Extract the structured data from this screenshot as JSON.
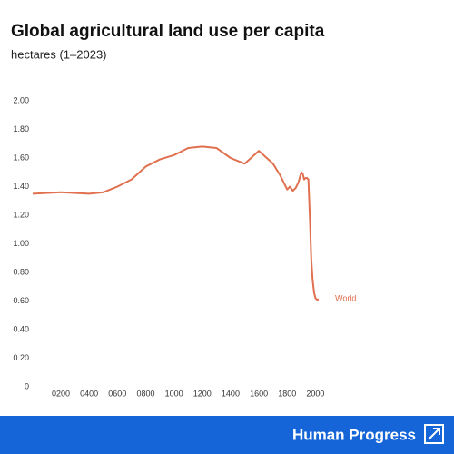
{
  "chart_data": {
    "type": "line",
    "title": "Global agricultural land use per capita",
    "subtitle": "hectares (1–2023)",
    "x": [
      1,
      200,
      400,
      500,
      600,
      700,
      800,
      900,
      1000,
      1100,
      1200,
      1300,
      1400,
      1500,
      1600,
      1700,
      1750,
      1780,
      1800,
      1820,
      1840,
      1860,
      1880,
      1900,
      1910,
      1920,
      1930,
      1940,
      1950,
      1960,
      1970,
      1980,
      1990,
      2000,
      2010,
      2023
    ],
    "series": [
      {
        "name": "World",
        "color": "#e0704f",
        "values": [
          1.35,
          1.36,
          1.35,
          1.36,
          1.4,
          1.45,
          1.54,
          1.59,
          1.62,
          1.67,
          1.68,
          1.67,
          1.6,
          1.56,
          1.65,
          1.56,
          1.48,
          1.42,
          1.38,
          1.4,
          1.37,
          1.39,
          1.43,
          1.5,
          1.49,
          1.45,
          1.46,
          1.46,
          1.45,
          1.2,
          0.9,
          0.75,
          0.66,
          0.62,
          0.61,
          0.61
        ]
      }
    ],
    "xlim": [
      1,
      2023
    ],
    "xticks": [
      {
        "value": 200,
        "label": "0200"
      },
      {
        "value": 400,
        "label": "0400"
      },
      {
        "value": 600,
        "label": "0600"
      },
      {
        "value": 800,
        "label": "0800"
      },
      1000,
      1200,
      1400,
      1600,
      1800,
      2000
    ],
    "ylim": [
      0,
      2
    ],
    "yticks": [
      0,
      {
        "value": 0.2,
        "label": "0.20"
      },
      {
        "value": 0.4,
        "label": "0.40"
      },
      {
        "value": 0.6,
        "label": "0.60"
      },
      {
        "value": 0.8,
        "label": "0.80"
      },
      {
        "value": 1,
        "label": "1.00"
      },
      {
        "value": 1.2,
        "label": "1.20"
      },
      {
        "value": 1.4,
        "label": "1.40"
      },
      {
        "value": 1.6,
        "label": "1.60"
      },
      {
        "value": 1.8,
        "label": "1.80"
      },
      {
        "value": 2,
        "label": "2.00"
      }
    ],
    "grid": false
  },
  "footer": {
    "brand": "Human Progress"
  }
}
